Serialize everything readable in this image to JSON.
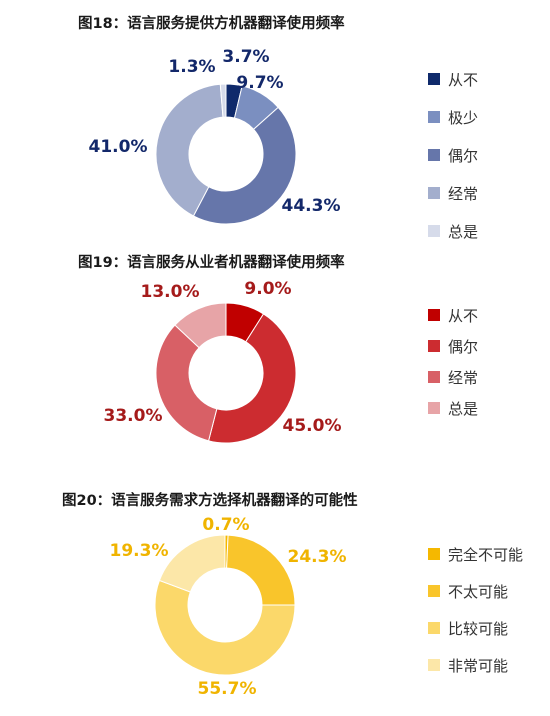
{
  "chart_data": [
    {
      "type": "pie",
      "title": "图18：语言服务提供方机器翻译使用频率",
      "categories": [
        "从不",
        "极少",
        "偶尔",
        "经常",
        "总是"
      ],
      "values": [
        3.7,
        9.7,
        44.3,
        41.0,
        1.3
      ],
      "labels": [
        "3.7%",
        "9.7%",
        "44.3%",
        "41.0%",
        "1.3%"
      ],
      "colors": [
        "#0f2a6b",
        "#7b8fc0",
        "#6676aa",
        "#a3aecd",
        "#d6dbea"
      ],
      "label_color": "#13286a",
      "legend_position": "right"
    },
    {
      "type": "pie",
      "title": "图19：语言服务从业者机器翻译使用频率",
      "categories": [
        "从不",
        "偶尔",
        "经常",
        "总是"
      ],
      "values": [
        9.0,
        45.0,
        33.0,
        13.0
      ],
      "labels": [
        "9.0%",
        "45.0%",
        "33.0%",
        "13.0%"
      ],
      "colors": [
        "#c00000",
        "#cc2c30",
        "#d86066",
        "#e7a4a7"
      ],
      "label_color": "#a51b1b",
      "legend_position": "right"
    },
    {
      "type": "pie",
      "title": "图20：语言服务需求方选择机器翻译的可能性",
      "categories": [
        "完全不可能",
        "不太可能",
        "比较可能",
        "非常可能"
      ],
      "values": [
        0.7,
        24.3,
        55.7,
        19.3
      ],
      "labels": [
        "0.7%",
        "24.3%",
        "55.7%",
        "19.3%"
      ],
      "colors": [
        "#f5b800",
        "#f9c52b",
        "#fbd86a",
        "#fce7a8"
      ],
      "label_color": "#f0b400",
      "legend_position": "right"
    }
  ]
}
